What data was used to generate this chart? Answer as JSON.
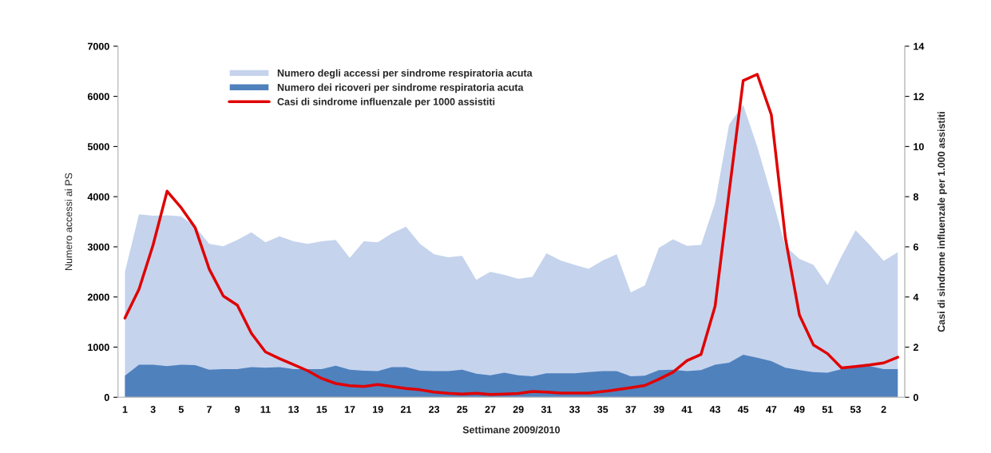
{
  "chart_data": {
    "type": "area",
    "xlabel": "Settimane 2009/2010",
    "ylabel": "Numero accessi ai PS",
    "y2label": "Casi di sindrome influenzale per 1.000 assistiti",
    "categories": [
      "1",
      null,
      "3",
      null,
      "5",
      null,
      "7",
      null,
      "9",
      null,
      "11",
      null,
      "13",
      null,
      "15",
      null,
      "17",
      null,
      "19",
      null,
      "21",
      null,
      "23",
      null,
      "25",
      null,
      "27",
      null,
      "29",
      null,
      "31",
      null,
      "33",
      null,
      "35",
      null,
      "37",
      null,
      "39",
      null,
      "41",
      null,
      "43",
      null,
      "45",
      null,
      "47",
      null,
      "49",
      null,
      "51",
      null,
      "53",
      null,
      "2",
      null
    ],
    "series": [
      {
        "name": "Numero degli accessi per sindrome respiratoria acuta",
        "color": "#c5d3ed",
        "values": [
          2500,
          3650,
          3620,
          3630,
          3610,
          3400,
          3060,
          3010,
          3140,
          3290,
          3090,
          3210,
          3110,
          3060,
          3110,
          3140,
          2780,
          3110,
          3090,
          3270,
          3400,
          3060,
          2850,
          2790,
          2820,
          2340,
          2500,
          2440,
          2360,
          2400,
          2870,
          2730,
          2640,
          2560,
          2730,
          2850,
          2090,
          2230,
          2980,
          3150,
          3020,
          3040,
          3880,
          5440,
          5830,
          5000,
          4040,
          3010,
          2760,
          2640,
          2240,
          2810,
          3330,
          3040,
          2720,
          2890
        ]
      },
      {
        "name": "Numero dei ricoveri per sindrome respiratoria acuta",
        "color": "#4f81bd",
        "values": [
          430,
          650,
          650,
          620,
          650,
          640,
          550,
          560,
          560,
          600,
          590,
          600,
          560,
          560,
          560,
          630,
          550,
          530,
          520,
          600,
          600,
          530,
          520,
          520,
          550,
          470,
          440,
          490,
          440,
          420,
          480,
          480,
          480,
          500,
          520,
          520,
          420,
          430,
          540,
          550,
          520,
          540,
          650,
          690,
          850,
          790,
          720,
          590,
          540,
          500,
          490,
          560,
          630,
          620,
          560,
          560
        ]
      },
      {
        "name": "Casi di sindrome influenzale per 1000 assistiti",
        "type": "line",
        "axis": "y2",
        "color": "#e00000",
        "values": [
          3.16,
          4.31,
          6.07,
          8.22,
          7.56,
          6.76,
          5.11,
          4.04,
          3.67,
          2.55,
          1.81,
          1.54,
          1.3,
          1.06,
          0.75,
          0.55,
          0.46,
          0.43,
          0.51,
          0.43,
          0.35,
          0.3,
          0.21,
          0.16,
          0.13,
          0.16,
          0.11,
          0.13,
          0.15,
          0.23,
          0.21,
          0.17,
          0.17,
          0.17,
          0.23,
          0.3,
          0.38,
          0.47,
          0.72,
          1.0,
          1.46,
          1.71,
          3.63,
          8.19,
          12.63,
          12.88,
          11.27,
          6.36,
          3.28,
          2.09,
          1.74,
          1.17,
          1.23,
          1.29,
          1.37,
          1.6
        ]
      }
    ],
    "ylim": [
      0,
      7000
    ],
    "yticks": [
      0,
      1000,
      2000,
      3000,
      4000,
      5000,
      6000,
      7000
    ],
    "y2lim": [
      0,
      14
    ],
    "y2ticks": [
      0,
      2,
      4,
      6,
      8,
      10,
      12,
      14
    ],
    "legend": "top left",
    "grid": false
  }
}
